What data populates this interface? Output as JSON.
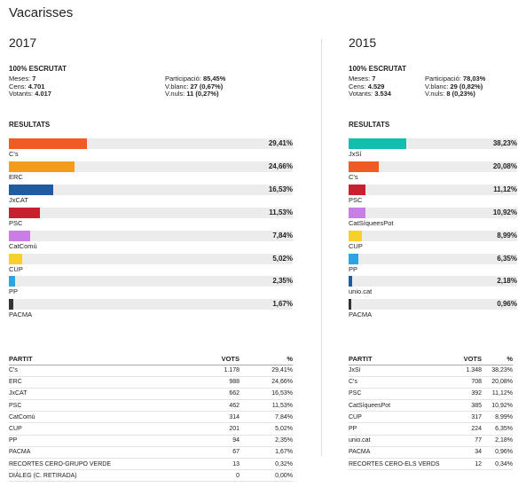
{
  "town": "Vacarisses",
  "elections": [
    {
      "year": "2017",
      "scrutat": "100% ESCRUTAT",
      "stats_left": [
        {
          "label": "Meses: ",
          "value": "7"
        },
        {
          "label": "Cens: ",
          "value": "4.701"
        },
        {
          "label": "Votants: ",
          "value": "4.017"
        }
      ],
      "stats_right": [
        {
          "label": "Participació: ",
          "value": "85,45%"
        },
        {
          "label": "V.blanc: ",
          "value": "27 (0,67%)"
        },
        {
          "label": "V.nuls: ",
          "value": "11 (0,27%)"
        }
      ],
      "results_title": "RESULTATS",
      "bars": [
        {
          "name": "C's",
          "pct_label": "29,41%",
          "pct": 29.41,
          "color": "#f05a23"
        },
        {
          "name": "ERC",
          "pct_label": "24,66%",
          "pct": 24.66,
          "color": "#f39c1b"
        },
        {
          "name": "JxCAT",
          "pct_label": "16,53%",
          "pct": 16.53,
          "color": "#1f5b9e"
        },
        {
          "name": "PSC",
          "pct_label": "11,53%",
          "pct": 11.53,
          "color": "#c8202f"
        },
        {
          "name": "CatComú",
          "pct_label": "7,84%",
          "pct": 7.84,
          "color": "#c97ee6"
        },
        {
          "name": "CUP",
          "pct_label": "5,02%",
          "pct": 5.02,
          "color": "#f7d02a"
        },
        {
          "name": "PP",
          "pct_label": "2,35%",
          "pct": 2.35,
          "color": "#2aa5e3"
        },
        {
          "name": "PACMA",
          "pct_label": "1,67%",
          "pct": 1.67,
          "color": "#333333"
        }
      ],
      "table": {
        "headers": [
          "PARTIT",
          "VOTS",
          "%"
        ],
        "rows": [
          [
            "C's",
            "1.178",
            "29,41%"
          ],
          [
            "ERC",
            "988",
            "24,66%"
          ],
          [
            "JxCAT",
            "662",
            "16,53%"
          ],
          [
            "PSC",
            "462",
            "11,53%"
          ],
          [
            "CatComú",
            "314",
            "7,84%"
          ],
          [
            "CUP",
            "201",
            "5,02%"
          ],
          [
            "PP",
            "94",
            "2,35%"
          ],
          [
            "PACMA",
            "67",
            "1,67%"
          ],
          [
            "RECORTES CERO-GRUPO VERDE",
            "13",
            "0,32%"
          ],
          [
            "DIÀLEG (C. RETIRADA)",
            "0",
            "0,00%"
          ]
        ]
      }
    },
    {
      "year": "2015",
      "scrutat": "100% ESCRUTAT",
      "stats_left": [
        {
          "label": "Meses: ",
          "value": "7"
        },
        {
          "label": "Cens: ",
          "value": "4.529"
        },
        {
          "label": "Votants: ",
          "value": "3.534"
        }
      ],
      "stats_right": [
        {
          "label": "Participació: ",
          "value": "78,03%"
        },
        {
          "label": "V.blanc: ",
          "value": "29 (0,82%)"
        },
        {
          "label": "V.nuls: ",
          "value": "8 (0,23%)"
        }
      ],
      "results_title": "RESULTATS",
      "bars": [
        {
          "name": "JxSí",
          "pct_label": "38,23%",
          "pct": 38.23,
          "color": "#12bfae"
        },
        {
          "name": "C's",
          "pct_label": "20,08%",
          "pct": 20.08,
          "color": "#f05a23"
        },
        {
          "name": "PSC",
          "pct_label": "11,12%",
          "pct": 11.12,
          "color": "#c8202f"
        },
        {
          "name": "CatSíqueesPot",
          "pct_label": "10,92%",
          "pct": 10.92,
          "color": "#c97ee6"
        },
        {
          "name": "CUP",
          "pct_label": "8,99%",
          "pct": 8.99,
          "color": "#f7d02a"
        },
        {
          "name": "PP",
          "pct_label": "6,35%",
          "pct": 6.35,
          "color": "#2aa5e3"
        },
        {
          "name": "unio.cat",
          "pct_label": "2,18%",
          "pct": 2.18,
          "color": "#1f5b9e"
        },
        {
          "name": "PACMA",
          "pct_label": "0,96%",
          "pct": 0.96,
          "color": "#333333"
        }
      ],
      "table": {
        "headers": [
          "PARTIT",
          "VOTS",
          "%"
        ],
        "rows": [
          [
            "JxSí",
            "1.348",
            "38,23%"
          ],
          [
            "C's",
            "708",
            "20,08%"
          ],
          [
            "PSC",
            "392",
            "11,12%"
          ],
          [
            "CatSíqueesPot",
            "385",
            "10,92%"
          ],
          [
            "CUP",
            "317",
            "8,99%"
          ],
          [
            "PP",
            "224",
            "6,35%"
          ],
          [
            "unio.cat",
            "77",
            "2,18%"
          ],
          [
            "PACMA",
            "34",
            "0,96%"
          ],
          [
            "RECORTES CERO-ELS VERDS",
            "12",
            "0,34%"
          ]
        ]
      }
    }
  ]
}
